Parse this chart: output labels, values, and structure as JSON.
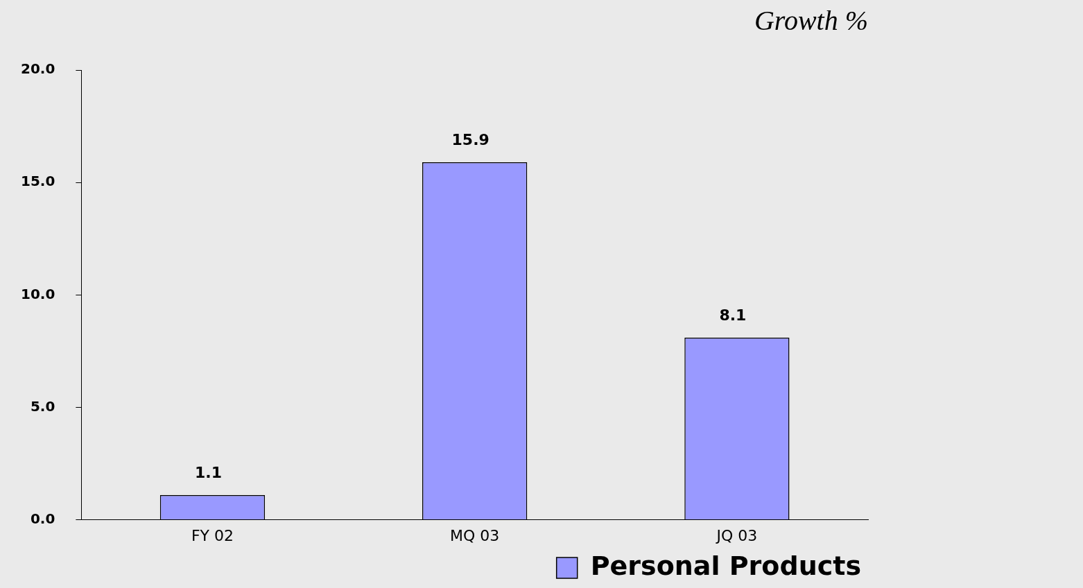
{
  "chart_data": {
    "type": "bar",
    "title": "Growth %",
    "categories": [
      "FY 02",
      "MQ 03",
      "JQ 03"
    ],
    "series": [
      {
        "name": "Personal Products",
        "color": "#9999ff",
        "values": [
          1.1,
          15.9,
          8.1
        ]
      }
    ],
    "ylim": [
      0,
      20
    ],
    "yticks": [
      {
        "value": 0,
        "label": "0.0"
      },
      {
        "value": 5,
        "label": "5.0"
      },
      {
        "value": 10,
        "label": "10.0"
      },
      {
        "value": 15,
        "label": "15.0"
      },
      {
        "value": 20,
        "label": "20.0"
      }
    ],
    "grid": false,
    "legend": "bottom right",
    "data_labels": true
  }
}
